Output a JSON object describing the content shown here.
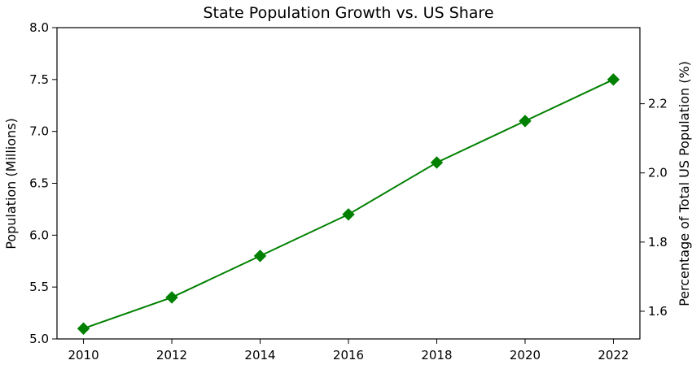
{
  "chart_data": {
    "type": "line",
    "title": "State Population Growth vs. US Share",
    "xlabel": "",
    "ylabel": "Population (Millions)",
    "y2label": "Percentage of Total US Population (%)",
    "x": [
      2010,
      2012,
      2014,
      2016,
      2018,
      2020,
      2022
    ],
    "xticks": [
      "2010",
      "2012",
      "2014",
      "2016",
      "2018",
      "2020",
      "2022"
    ],
    "xlim": [
      2009.4,
      2022.6
    ],
    "ylim": [
      5.0,
      8.0
    ],
    "yticks": [
      "5.0",
      "5.5",
      "6.0",
      "6.5",
      "7.0",
      "7.5",
      "8.0"
    ],
    "y2lim": [
      1.52,
      2.42
    ],
    "y2ticks": [
      "1.6",
      "1.8",
      "2.0",
      "2.2"
    ],
    "series": [
      {
        "values": [
          5.1,
          5.4,
          5.8,
          6.2,
          6.7,
          7.1,
          7.5
        ],
        "color": "#008000",
        "marker": "diamond"
      }
    ],
    "grid": false,
    "legend": "none"
  }
}
